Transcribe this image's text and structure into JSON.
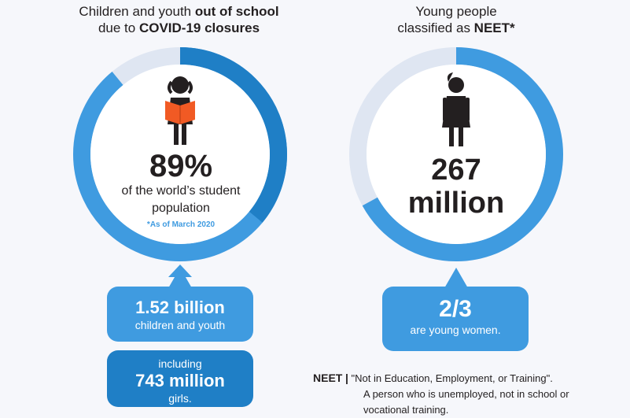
{
  "left": {
    "heading_line1_pre": "Children and youth ",
    "heading_line1_bold": "out of school",
    "heading_line2_pre": "due to ",
    "heading_line2_bold": "COVID-19 closures",
    "percent": "89%",
    "percent_desc_line1": "of the world’s student",
    "percent_desc_line2": "population",
    "note": "*As of March 2020",
    "ring_fraction": 0.89,
    "box1_title": "1.52 billion",
    "box1_sub": "children and youth",
    "box2_pre": "including",
    "box2_title": "743 million",
    "box2_sub": "girls."
  },
  "right": {
    "heading_line1": "Young people",
    "heading_line2_pre": "classified as ",
    "heading_line2_bold": "NEET*",
    "number": "267",
    "unit": "million",
    "ring_fraction": 0.67,
    "box_title": "2/3",
    "box_sub": "are young women."
  },
  "definition": {
    "term": "NEET",
    "separator": "|",
    "line1": "\"Not in Education, Employment, or Training\".",
    "line2": "A person who is unemployed, not in school or",
    "line3": "vocational training."
  },
  "colors": {
    "ring_primary": "#3f9be0",
    "ring_dark": "#1f7fc6",
    "ring_track": "#dfe6f2",
    "book": "#f15a24",
    "figure": "#231f20"
  }
}
